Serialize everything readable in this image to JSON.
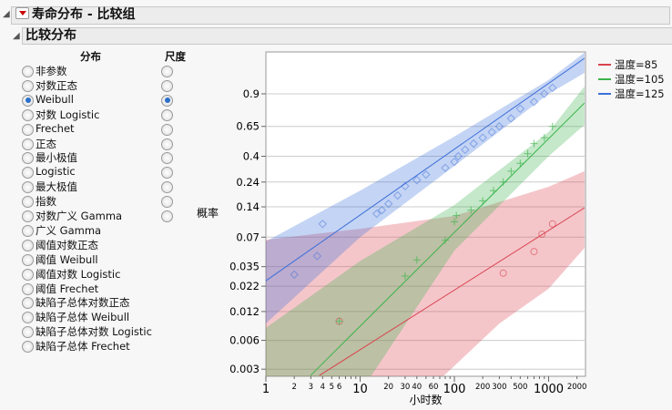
{
  "header": {
    "title": "寿命分布 - 比较组",
    "subtitle": "比较分布"
  },
  "columns": {
    "dist": "分布",
    "scale": "尺度"
  },
  "distributions": [
    "非参数",
    "对数正态",
    "Weibull",
    "对数 Logistic",
    "Frechet",
    "正态",
    "最小极值",
    "Logistic",
    "最大极值",
    "指数",
    "对数广义 Gamma",
    "广义 Gamma",
    "阈值对数正态",
    "阈值 Weibull",
    "阈值对数 Logistic",
    "阈值 Frechet",
    "缺陷子总体对数正态",
    "缺陷子总体 Weibull",
    "缺陷子总体对数 Logistic",
    "缺陷子总体 Frechet"
  ],
  "selected_distribution": "Weibull",
  "scale_count": 11,
  "selected_scale_index": 2,
  "chart_data": {
    "type": "scatter",
    "xlabel": "小时数",
    "ylabel": "概率",
    "x_scale": "log",
    "y_scale": "weibull",
    "xlim": [
      1,
      2400
    ],
    "ylim": [
      0.0025,
      0.998
    ],
    "x_ticks_major": [
      "1",
      "10",
      "100",
      "1000"
    ],
    "x_ticks_minor": [
      "2",
      "3",
      "4",
      "5",
      "6",
      "20",
      "30",
      "40",
      "60",
      "200",
      "300",
      "500",
      "2000"
    ],
    "y_ticks": [
      "0.003",
      "0.006",
      "0.012",
      "0.022",
      "0.035",
      "0.07",
      "0.14",
      "0.24",
      "0.4",
      "0.65",
      "0.9"
    ],
    "grid": true,
    "legend": "right",
    "series": [
      {
        "name": "温度=85",
        "color": "#d9434f",
        "marker": "circle",
        "points": [
          [
            6,
            0.0095
          ],
          [
            330,
            0.03
          ],
          [
            700,
            0.05
          ],
          [
            850,
            0.075
          ],
          [
            1100,
            0.095
          ]
        ],
        "fit": [
          [
            3.7,
            0.00258
          ],
          [
            2400,
            0.137
          ]
        ],
        "band_upper": [
          [
            1,
            0.066
          ],
          [
            10,
            0.085
          ],
          [
            100,
            0.114
          ],
          [
            1000,
            0.217
          ],
          [
            2400,
            0.3
          ]
        ],
        "band_lower": [
          [
            1,
            0.0001
          ],
          [
            10,
            0.0006
          ],
          [
            78,
            0.00258
          ],
          [
            300,
            0.009
          ],
          [
            1000,
            0.0207
          ],
          [
            2400,
            0.0545
          ]
        ]
      },
      {
        "name": "温度=105",
        "color": "#3cb44b",
        "marker": "plus",
        "points": [
          [
            6,
            0.0095
          ],
          [
            30,
            0.028
          ],
          [
            40,
            0.041
          ],
          [
            80,
            0.065
          ],
          [
            100,
            0.1
          ],
          [
            105,
            0.115
          ],
          [
            150,
            0.13
          ],
          [
            200,
            0.16
          ],
          [
            260,
            0.2
          ],
          [
            330,
            0.24
          ],
          [
            400,
            0.3
          ],
          [
            500,
            0.35
          ],
          [
            600,
            0.42
          ],
          [
            700,
            0.5
          ],
          [
            900,
            0.55
          ],
          [
            1100,
            0.65
          ]
        ],
        "fit": [
          [
            2.98,
            0.00258
          ],
          [
            2400,
            0.842
          ]
        ],
        "band_upper": [
          [
            1,
            0.0081
          ],
          [
            10,
            0.04
          ],
          [
            100,
            0.146
          ],
          [
            1000,
            0.6
          ],
          [
            2400,
            0.936
          ]
        ],
        "band_lower": [
          [
            1,
            5e-05
          ],
          [
            13.2,
            0.00258
          ],
          [
            100,
            0.0512
          ],
          [
            1000,
            0.4
          ],
          [
            2400,
            0.664
          ]
        ]
      },
      {
        "name": "温度=125",
        "color": "#3d6fd9",
        "marker": "diamond",
        "points": [
          [
            2,
            0.029
          ],
          [
            3.5,
            0.045
          ],
          [
            4,
            0.095
          ],
          [
            15,
            0.12
          ],
          [
            17,
            0.13
          ],
          [
            20,
            0.15
          ],
          [
            25,
            0.18
          ],
          [
            30,
            0.22
          ],
          [
            40,
            0.25
          ],
          [
            50,
            0.28
          ],
          [
            80,
            0.32
          ],
          [
            100,
            0.36
          ],
          [
            110,
            0.4
          ],
          [
            130,
            0.45
          ],
          [
            160,
            0.5
          ],
          [
            200,
            0.55
          ],
          [
            250,
            0.6
          ],
          [
            300,
            0.65
          ],
          [
            400,
            0.72
          ],
          [
            500,
            0.8
          ],
          [
            700,
            0.85
          ],
          [
            900,
            0.9
          ],
          [
            1100,
            0.93
          ]
        ],
        "fit": [
          [
            1,
            0.025
          ],
          [
            2400,
            0.9956
          ]
        ],
        "band_upper": [
          [
            1,
            0.0634
          ],
          [
            10,
            0.2
          ],
          [
            100,
            0.56
          ],
          [
            1000,
            0.96
          ],
          [
            2400,
            0.998
          ]
        ],
        "band_lower": [
          [
            1,
            0.00902
          ],
          [
            10,
            0.07
          ],
          [
            100,
            0.333
          ],
          [
            1000,
            0.9
          ],
          [
            2400,
            0.978
          ]
        ]
      }
    ]
  }
}
